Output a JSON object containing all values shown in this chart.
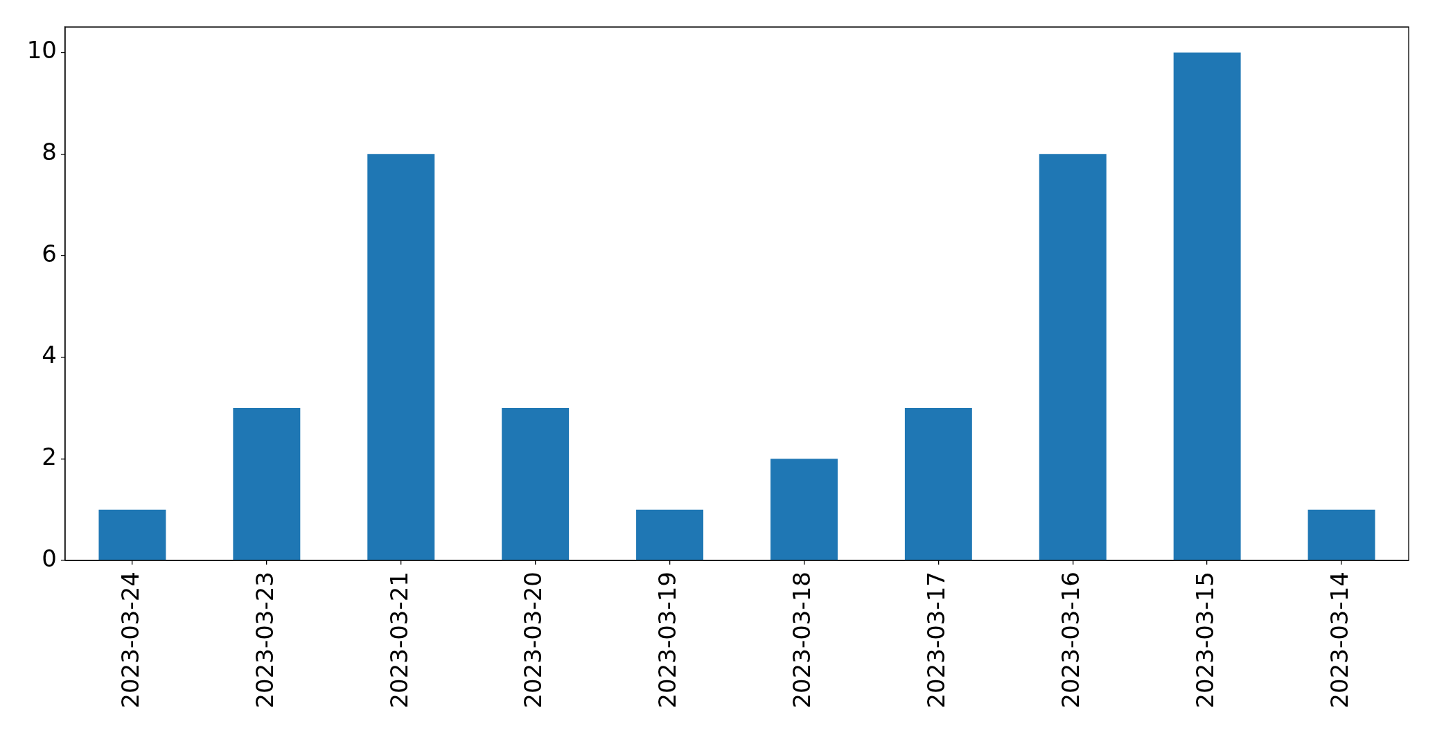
{
  "chart_data": {
    "type": "bar",
    "categories": [
      "2023-03-24",
      "2023-03-23",
      "2023-03-21",
      "2023-03-20",
      "2023-03-19",
      "2023-03-18",
      "2023-03-17",
      "2023-03-16",
      "2023-03-15",
      "2023-03-14"
    ],
    "values": [
      1,
      3,
      8,
      3,
      1,
      2,
      3,
      8,
      10,
      1
    ],
    "color": "#1f77b4",
    "ylim": [
      0,
      10.5
    ],
    "yticks": [
      0,
      2,
      4,
      6,
      8,
      10
    ],
    "grid": false,
    "legend": false
  }
}
